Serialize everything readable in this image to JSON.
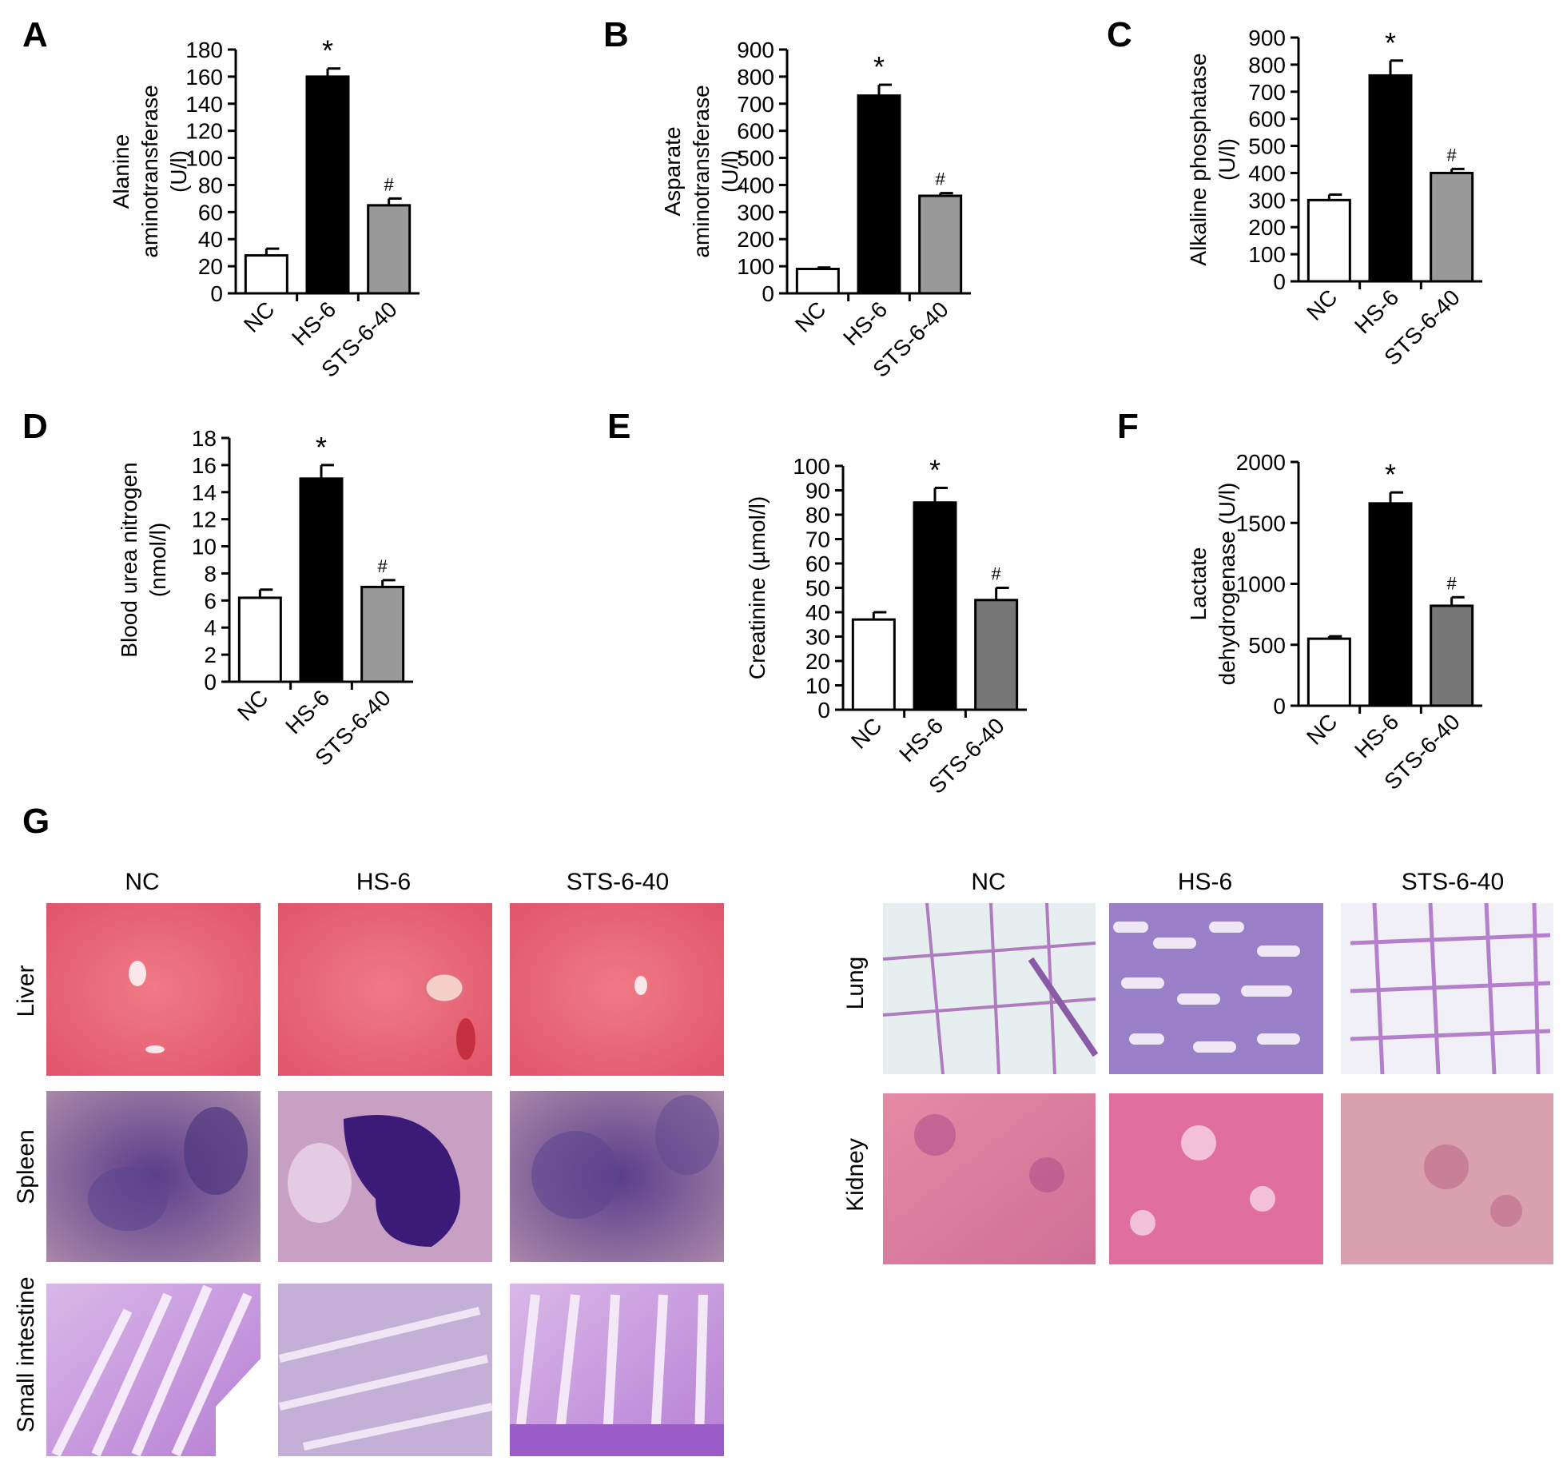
{
  "categories": [
    "NC",
    "HS-6",
    "STS-6-40"
  ],
  "colors": {
    "nc": "#ffffff",
    "hs": "#000000",
    "sts_light": "#999999",
    "sts_dark": "#777777",
    "axis": "#000000"
  },
  "chart_data": [
    {
      "panel": "A",
      "type": "bar",
      "ylabel": [
        "Alanine",
        "aminotransferase",
        "(U/l)"
      ],
      "ylim": [
        0,
        180
      ],
      "yticks": [
        0,
        20,
        40,
        60,
        80,
        100,
        120,
        140,
        160,
        180
      ],
      "categories": [
        "NC",
        "HS-6",
        "STS-6-40"
      ],
      "values": [
        28,
        160,
        65
      ],
      "errors": [
        5,
        6,
        5
      ],
      "marks": [
        "",
        "*",
        "#"
      ],
      "sts_color": "#999999"
    },
    {
      "panel": "B",
      "type": "bar",
      "ylabel": [
        "Asparate",
        "aminotransferase",
        "(U/l)"
      ],
      "ylim": [
        0,
        900
      ],
      "yticks": [
        0,
        100,
        200,
        300,
        400,
        500,
        600,
        700,
        800,
        900
      ],
      "categories": [
        "NC",
        "HS-6",
        "STS-6-40"
      ],
      "values": [
        90,
        730,
        360
      ],
      "errors": [
        5,
        40,
        10
      ],
      "marks": [
        "",
        "*",
        "#"
      ],
      "sts_color": "#999999"
    },
    {
      "panel": "C",
      "type": "bar",
      "ylabel": [
        "Alkaline phosphatase",
        "(U/l)"
      ],
      "ylim": [
        0,
        900
      ],
      "yticks": [
        0,
        100,
        200,
        300,
        400,
        500,
        600,
        700,
        800,
        900
      ],
      "categories": [
        "NC",
        "HS-6",
        "STS-6-40"
      ],
      "values": [
        300,
        760,
        400
      ],
      "errors": [
        20,
        55,
        15
      ],
      "marks": [
        "",
        "*",
        "#"
      ],
      "sts_color": "#999999"
    },
    {
      "panel": "D",
      "type": "bar",
      "ylabel": [
        "Blood urea nitrogen",
        "(nmol/l)"
      ],
      "ylim": [
        0,
        18
      ],
      "yticks": [
        0,
        2,
        4,
        6,
        8,
        10,
        12,
        14,
        16,
        18
      ],
      "categories": [
        "NC",
        "HS-6",
        "STS-6-40"
      ],
      "values": [
        6.2,
        15.0,
        7.0
      ],
      "errors": [
        0.6,
        1.0,
        0.5
      ],
      "marks": [
        "",
        "*",
        "#"
      ],
      "sts_color": "#999999"
    },
    {
      "panel": "E",
      "type": "bar",
      "ylabel": [
        "Creatinine (µmol/l)"
      ],
      "ylim": [
        0,
        100
      ],
      "yticks": [
        0,
        10,
        20,
        30,
        40,
        50,
        60,
        70,
        80,
        90,
        100
      ],
      "categories": [
        "NC",
        "HS-6",
        "STS-6-40"
      ],
      "values": [
        37,
        85,
        45
      ],
      "errors": [
        3,
        6,
        5
      ],
      "marks": [
        "",
        "*",
        "#"
      ],
      "sts_color": "#777777"
    },
    {
      "panel": "F",
      "type": "bar",
      "ylabel": [
        "Lactate",
        "dehydrogenase (U/l)"
      ],
      "ylim": [
        0,
        2000
      ],
      "yticks": [
        0,
        500,
        1000,
        1500,
        2000
      ],
      "categories": [
        "NC",
        "HS-6",
        "STS-6-40"
      ],
      "values": [
        550,
        1660,
        820
      ],
      "errors": [
        20,
        90,
        70
      ],
      "marks": [
        "",
        "*",
        "#"
      ],
      "sts_color": "#777777"
    }
  ],
  "histology": {
    "panel_letter": "G",
    "left": {
      "columns": [
        "NC",
        "HS-6",
        "STS-6-40"
      ],
      "rows": [
        "Liver",
        "Spleen",
        "Small intestine"
      ]
    },
    "right": {
      "columns": [
        "NC",
        "HS-6",
        "STS-6-40"
      ],
      "rows": [
        "Lung",
        "Kidney"
      ]
    }
  }
}
